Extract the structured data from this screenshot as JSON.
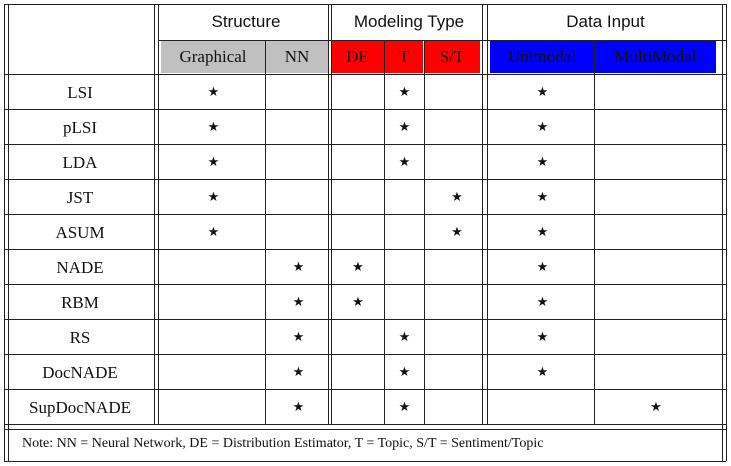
{
  "groups": {
    "structure": "Structure",
    "modeling": "Modeling Type",
    "data_input": "Data Input"
  },
  "subheaders": {
    "graphical": "Graphical",
    "nn": "NN",
    "de": "DE",
    "t": "T",
    "st": "S/T",
    "unimodal": "Unimodal",
    "multimodal": "MultiModal"
  },
  "colors": {
    "structure_header": "#c0c0c0",
    "modeling_header": "#ff0000",
    "data_input_header": "#0000ff",
    "grid": "#222222"
  },
  "star_symbol": "★",
  "rows": [
    {
      "model": "LSI",
      "marks": [
        "★",
        "",
        "",
        "★",
        "",
        "★",
        ""
      ]
    },
    {
      "model": "pLSI",
      "marks": [
        "★",
        "",
        "",
        "★",
        "",
        "★",
        ""
      ]
    },
    {
      "model": "LDA",
      "marks": [
        "★",
        "",
        "",
        "★",
        "",
        "★",
        ""
      ]
    },
    {
      "model": "JST",
      "marks": [
        "★",
        "",
        "",
        "",
        "★",
        "★",
        ""
      ]
    },
    {
      "model": "ASUM",
      "marks": [
        "★",
        "",
        "",
        "",
        "★",
        "★",
        ""
      ]
    },
    {
      "model": "NADE",
      "marks": [
        "",
        "★",
        "★",
        "",
        "",
        "★",
        ""
      ]
    },
    {
      "model": "RBM",
      "marks": [
        "",
        "★",
        "★",
        "",
        "",
        "★",
        ""
      ]
    },
    {
      "model": "RS",
      "marks": [
        "",
        "★",
        "",
        "★",
        "",
        "★",
        ""
      ]
    },
    {
      "model": "DocNADE",
      "marks": [
        "",
        "★",
        "",
        "★",
        "",
        "★",
        ""
      ]
    },
    {
      "model": "SupDocNADE",
      "marks": [
        "",
        "★",
        "",
        "★",
        "",
        "",
        "★"
      ]
    }
  ],
  "note": "Note: NN = Neural Network, DE = Distribution Estimator, T = Topic, S/T = Sentiment/Topic"
}
